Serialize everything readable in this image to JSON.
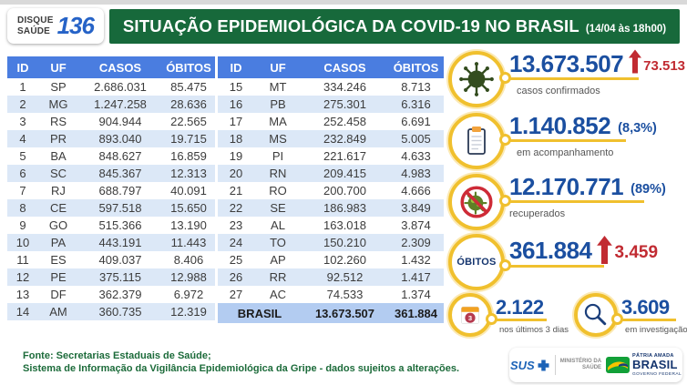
{
  "header": {
    "badge_line1": "DISQUE",
    "badge_line2": "SAÚDE",
    "badge_number": "136",
    "title": "SITUAÇÃO EPIDEMIOLÓGICA DA COVID-19 NO BRASIL",
    "timestamp": "(14/04 às 18h00)"
  },
  "table": {
    "headers": [
      "ID",
      "UF",
      "CASOS",
      "ÓBITOS"
    ],
    "left_rows": [
      {
        "id": 1,
        "uf": "SP",
        "casos": "2.686.031",
        "obitos": "85.475"
      },
      {
        "id": 2,
        "uf": "MG",
        "casos": "1.247.258",
        "obitos": "28.636"
      },
      {
        "id": 3,
        "uf": "RS",
        "casos": "904.944",
        "obitos": "22.565"
      },
      {
        "id": 4,
        "uf": "PR",
        "casos": "893.040",
        "obitos": "19.715"
      },
      {
        "id": 5,
        "uf": "BA",
        "casos": "848.627",
        "obitos": "16.859"
      },
      {
        "id": 6,
        "uf": "SC",
        "casos": "845.367",
        "obitos": "12.313"
      },
      {
        "id": 7,
        "uf": "RJ",
        "casos": "688.797",
        "obitos": "40.091"
      },
      {
        "id": 8,
        "uf": "CE",
        "casos": "597.518",
        "obitos": "15.650"
      },
      {
        "id": 9,
        "uf": "GO",
        "casos": "515.366",
        "obitos": "13.190"
      },
      {
        "id": 10,
        "uf": "PA",
        "casos": "443.191",
        "obitos": "11.443"
      },
      {
        "id": 11,
        "uf": "ES",
        "casos": "409.037",
        "obitos": "8.406"
      },
      {
        "id": 12,
        "uf": "PE",
        "casos": "375.115",
        "obitos": "12.988"
      },
      {
        "id": 13,
        "uf": "DF",
        "casos": "362.379",
        "obitos": "6.972"
      },
      {
        "id": 14,
        "uf": "AM",
        "casos": "360.735",
        "obitos": "12.319"
      }
    ],
    "right_rows": [
      {
        "id": 15,
        "uf": "MT",
        "casos": "334.246",
        "obitos": "8.713"
      },
      {
        "id": 16,
        "uf": "PB",
        "casos": "275.301",
        "obitos": "6.316"
      },
      {
        "id": 17,
        "uf": "MA",
        "casos": "252.458",
        "obitos": "6.691"
      },
      {
        "id": 18,
        "uf": "MS",
        "casos": "232.849",
        "obitos": "5.005"
      },
      {
        "id": 19,
        "uf": "PI",
        "casos": "221.617",
        "obitos": "4.633"
      },
      {
        "id": 20,
        "uf": "RN",
        "casos": "209.415",
        "obitos": "4.983"
      },
      {
        "id": 21,
        "uf": "RO",
        "casos": "200.700",
        "obitos": "4.666"
      },
      {
        "id": 22,
        "uf": "SE",
        "casos": "186.983",
        "obitos": "3.849"
      },
      {
        "id": 23,
        "uf": "AL",
        "casos": "163.018",
        "obitos": "3.874"
      },
      {
        "id": 24,
        "uf": "TO",
        "casos": "150.210",
        "obitos": "2.309"
      },
      {
        "id": 25,
        "uf": "AP",
        "casos": "102.260",
        "obitos": "1.432"
      },
      {
        "id": 26,
        "uf": "RR",
        "casos": "92.512",
        "obitos": "1.417"
      },
      {
        "id": 27,
        "uf": "AC",
        "casos": "74.533",
        "obitos": "1.374"
      }
    ],
    "total_row": {
      "label": "BRASIL",
      "casos": "13.673.507",
      "obitos": "361.884"
    }
  },
  "stats": [
    {
      "icon": "virus-icon",
      "value": "13.673.507",
      "delta": "73.513",
      "label": "casos confirmados"
    },
    {
      "icon": "clipboard-icon",
      "value": "1.140.852",
      "percent": "(8,3%)",
      "label": "em acompanhamento"
    },
    {
      "icon": "no-virus-icon",
      "value": "12.170.771",
      "percent": "(89%)",
      "label": "recuperados"
    },
    {
      "icon": "obitos-text-circle",
      "icon_text": "ÓBITOS",
      "value": "361.884",
      "delta": "3.459"
    },
    {
      "icon": "calendar-icon",
      "icon_badge": "3",
      "value": "2.122",
      "label": "nos últimos 3 dias"
    },
    {
      "icon": "magnifier-icon",
      "value": "3.609",
      "label": "em investigação"
    }
  ],
  "footer": {
    "source_line1": "Fonte: Secretarias Estaduais de Saúde;",
    "source_line2": "Sistema de Informação da Vigilância Epidemiológica da Gripe - dados sujeitos a alterações.",
    "sus_label": "SUS",
    "ministerio_line1": "MINISTÉRIO DA",
    "ministerio_line2": "SAÚDE",
    "brasil_line1": "PÁTRIA AMADA",
    "brasil_line2": "BRASIL",
    "brasil_line3": "GOVERNO FEDERAL"
  },
  "colors": {
    "banner_green": "#17693B",
    "header_blue": "#4A7DE0",
    "stripe_blue": "#DCE8F7",
    "total_blue": "#B3CCF1",
    "number_blue": "#1B4FA0",
    "alert_red": "#C12B32",
    "ring_yellow": "#F0C02E",
    "label_gray": "#555555",
    "footer_green": "#1C6B3A",
    "badge_blue": "#2663C7",
    "virus_green": "#344D1F"
  },
  "chart_data": {
    "type": "table",
    "title": "Situação epidemiológica da COVID-19 no Brasil (14/04 às 18h00)",
    "columns": [
      "ID",
      "UF",
      "CASOS",
      "ÓBITOS"
    ],
    "rows": [
      [
        1,
        "SP",
        2686031,
        85475
      ],
      [
        2,
        "MG",
        1247258,
        28636
      ],
      [
        3,
        "RS",
        904944,
        22565
      ],
      [
        4,
        "PR",
        893040,
        19715
      ],
      [
        5,
        "BA",
        848627,
        16859
      ],
      [
        6,
        "SC",
        845367,
        12313
      ],
      [
        7,
        "RJ",
        688797,
        40091
      ],
      [
        8,
        "CE",
        597518,
        15650
      ],
      [
        9,
        "GO",
        515366,
        13190
      ],
      [
        10,
        "PA",
        443191,
        11443
      ],
      [
        11,
        "ES",
        409037,
        8406
      ],
      [
        12,
        "PE",
        375115,
        12988
      ],
      [
        13,
        "DF",
        362379,
        6972
      ],
      [
        14,
        "AM",
        360735,
        12319
      ],
      [
        15,
        "MT",
        334246,
        8713
      ],
      [
        16,
        "PB",
        275301,
        6316
      ],
      [
        17,
        "MA",
        252458,
        6691
      ],
      [
        18,
        "MS",
        232849,
        5005
      ],
      [
        19,
        "PI",
        221617,
        4633
      ],
      [
        20,
        "RN",
        209415,
        4983
      ],
      [
        21,
        "RO",
        200700,
        4666
      ],
      [
        22,
        "SE",
        186983,
        3849
      ],
      [
        23,
        "AL",
        163018,
        3874
      ],
      [
        24,
        "TO",
        150210,
        2309
      ],
      [
        25,
        "AP",
        102260,
        1432
      ],
      [
        26,
        "RR",
        92512,
        1417
      ],
      [
        27,
        "AC",
        74533,
        1374
      ]
    ],
    "total": {
      "uf": "BRASIL",
      "casos": 13673507,
      "obitos": 361884
    },
    "summary": {
      "casos_confirmados": 13673507,
      "novos_casos": 73513,
      "em_acompanhamento": 1140852,
      "em_acompanhamento_pct": "8,3%",
      "recuperados": 12170771,
      "recuperados_pct": "89%",
      "obitos": 361884,
      "novos_obitos": 3459,
      "obitos_ultimos_3_dias": 2122,
      "em_investigacao": 3609
    }
  }
}
